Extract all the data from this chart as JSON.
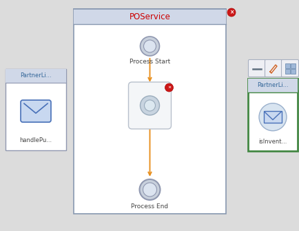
{
  "bg_color": "#dcdcdc",
  "title_text": "POService",
  "title_color": "#cc0000",
  "title_bg_top": "#d0d8e8",
  "title_bg_bot": "#bcc8dc",
  "process_start_label": "Process Start",
  "process_end_label": "Process End",
  "flow_color": "#e89020",
  "left_panel_label": "PartnerLi...",
  "left_service_label": "handlePu...",
  "right_panel_label": "PartnerLi...",
  "right_service_label": "isInvent...",
  "node_border": "#9098b0",
  "node_fill_outer": "#c8d0dc",
  "node_fill_inner": "#dce4f0",
  "envelope_color": "#4870b8",
  "envelope_fill": "#c8d8f0",
  "green_border": "#448844",
  "red_dot": "#cc1818",
  "activity_bg": "#f4f6f8",
  "activity_border": "#b8c0cc",
  "activity_inner_fill": "#c8d4e0",
  "activity_inner_border": "#9aacbc",
  "panel_border": "#8898b0",
  "panel_bg": "white",
  "side_panel_border": "#9098b0",
  "toolbar_btn_fill": "#eeeff4",
  "toolbar_btn_border": "#a8b0c0"
}
